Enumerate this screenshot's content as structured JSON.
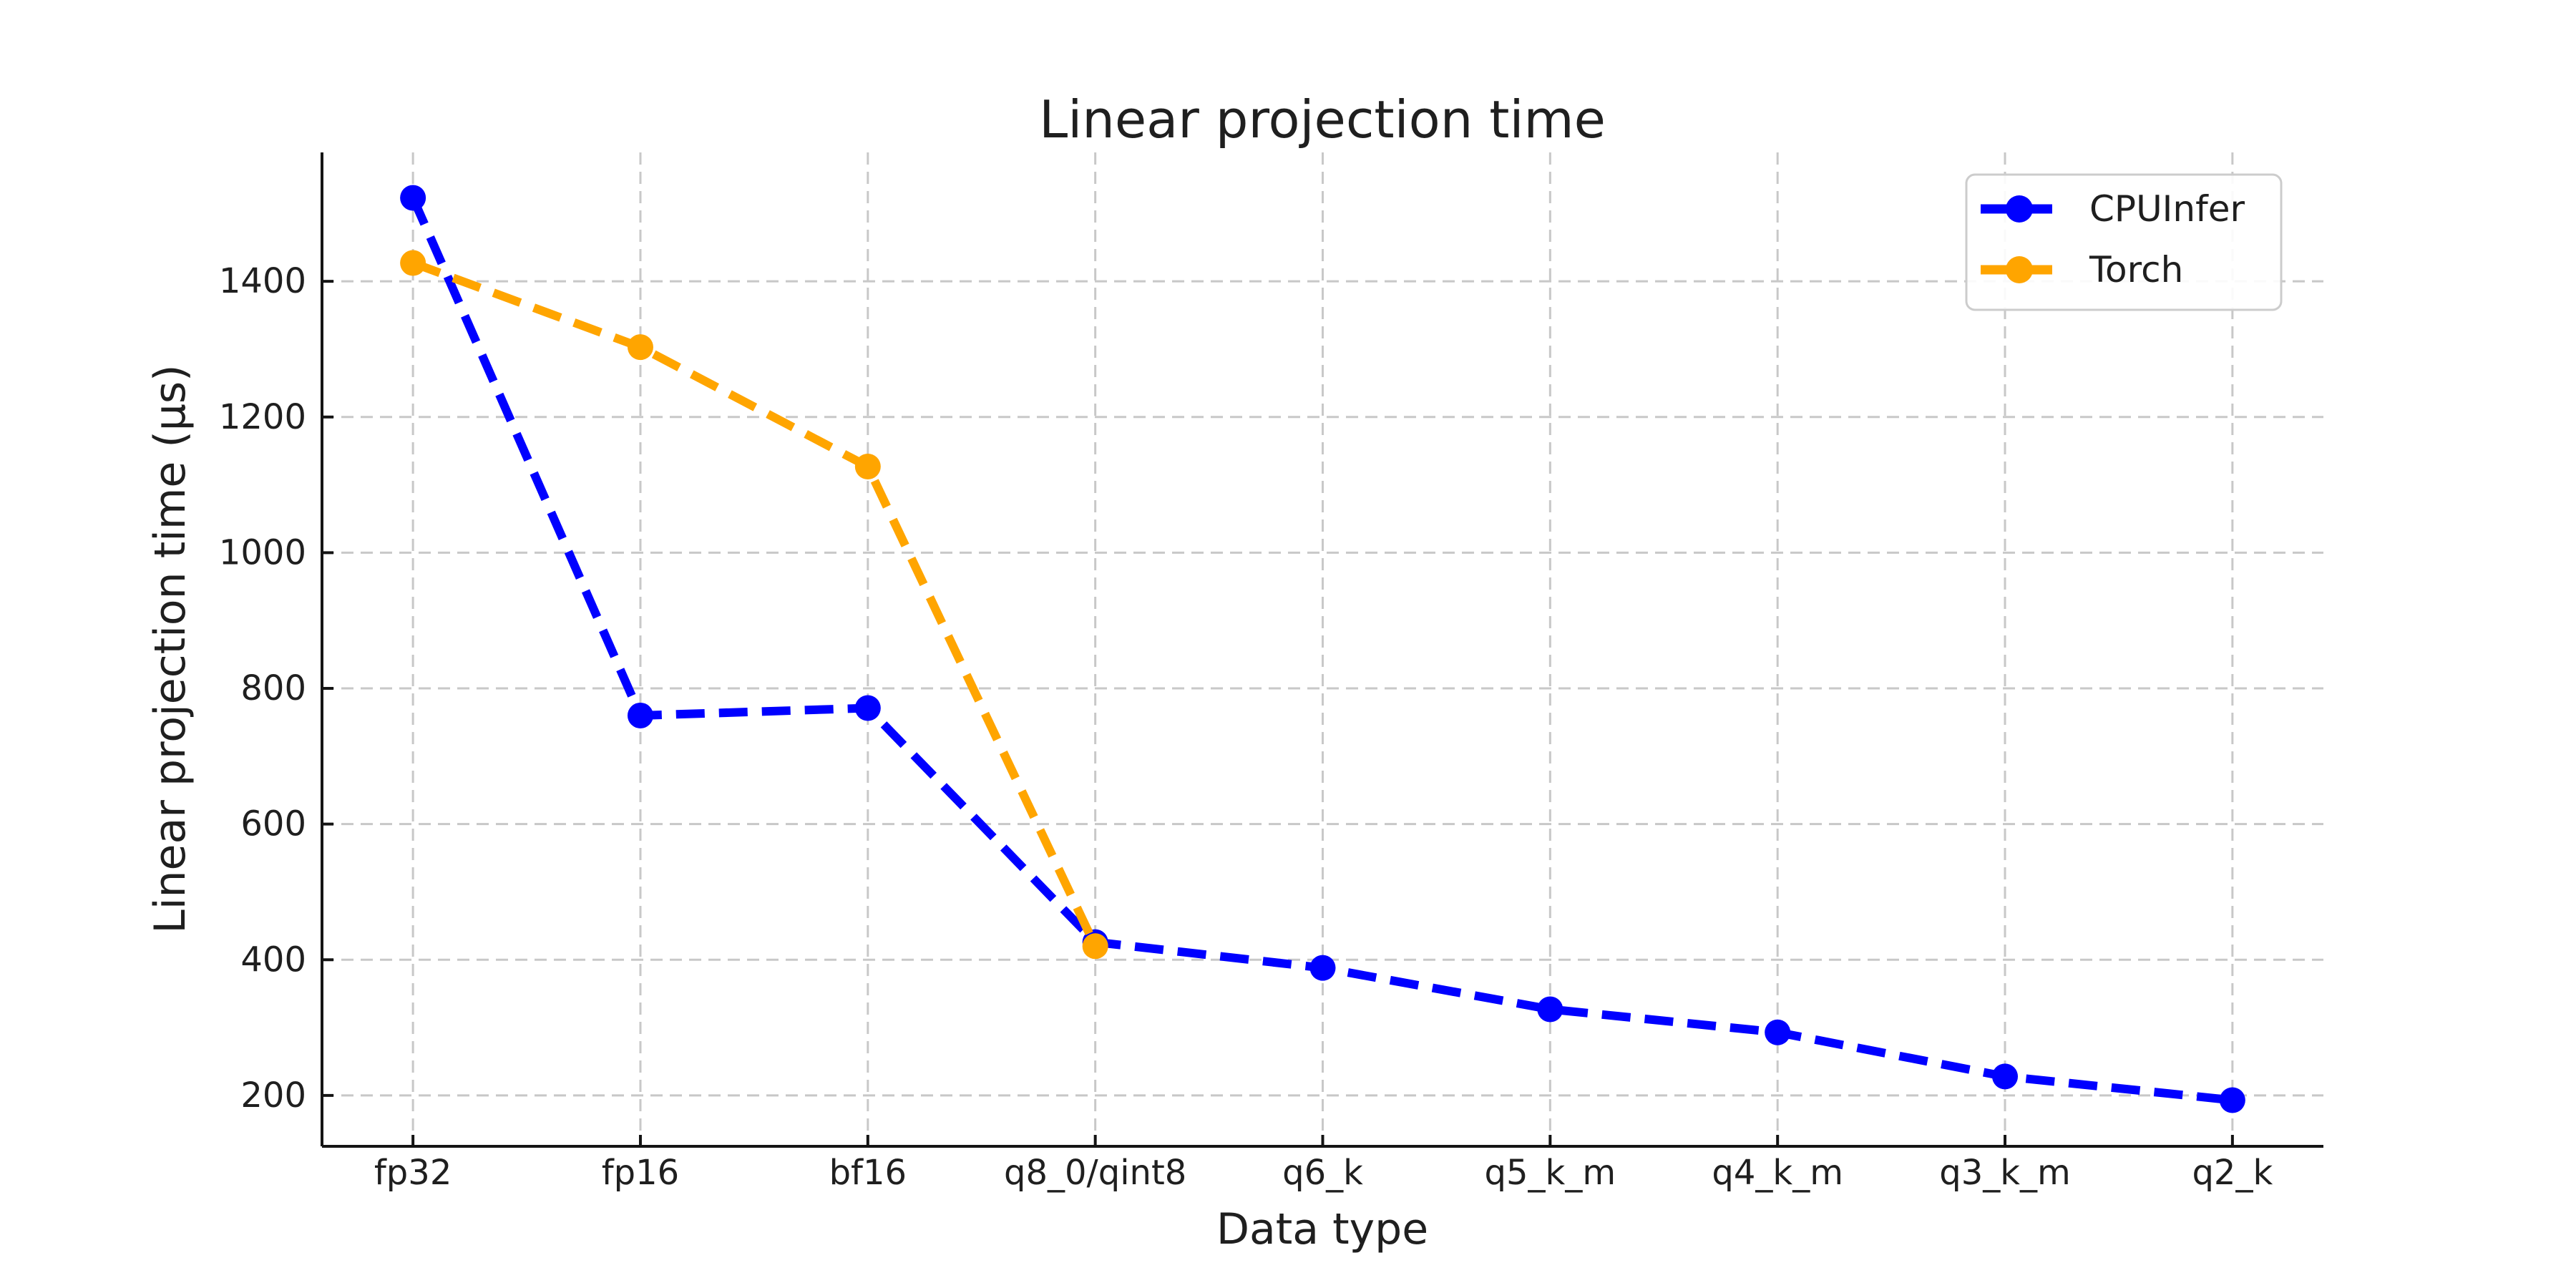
{
  "chart_data": {
    "type": "line",
    "title": "Linear projection time",
    "xlabel": "Data type",
    "ylabel": "Linear projection time (µs)",
    "categories": [
      "fp32",
      "fp16",
      "bf16",
      "q8_0/qint8",
      "q6_k",
      "q5_k_m",
      "q4_k_m",
      "q3_k_m",
      "q2_k"
    ],
    "series": [
      {
        "name": "CPUInfer",
        "color": "#0000ff",
        "values": [
          1523,
          760,
          771,
          426,
          388,
          327,
          293,
          228,
          193
        ]
      },
      {
        "name": "Torch",
        "color": "#ffa500",
        "values": [
          1427,
          1303,
          1127,
          420,
          null,
          null,
          null,
          null,
          null
        ]
      }
    ],
    "yticks": [
      200,
      400,
      600,
      800,
      1000,
      1200,
      1400
    ],
    "ylim": [
      125,
      1590
    ],
    "x_margin": 0.4,
    "grid": true,
    "grid_style": "dashed",
    "line_style": "dashed",
    "marker": "circle",
    "legend_position": "upper right",
    "colors": {
      "grid": "#c8c8c8",
      "spine": "#141414",
      "text": "#1f1f1f",
      "legend_border": "#cccccc",
      "background": "#ffffff"
    }
  }
}
